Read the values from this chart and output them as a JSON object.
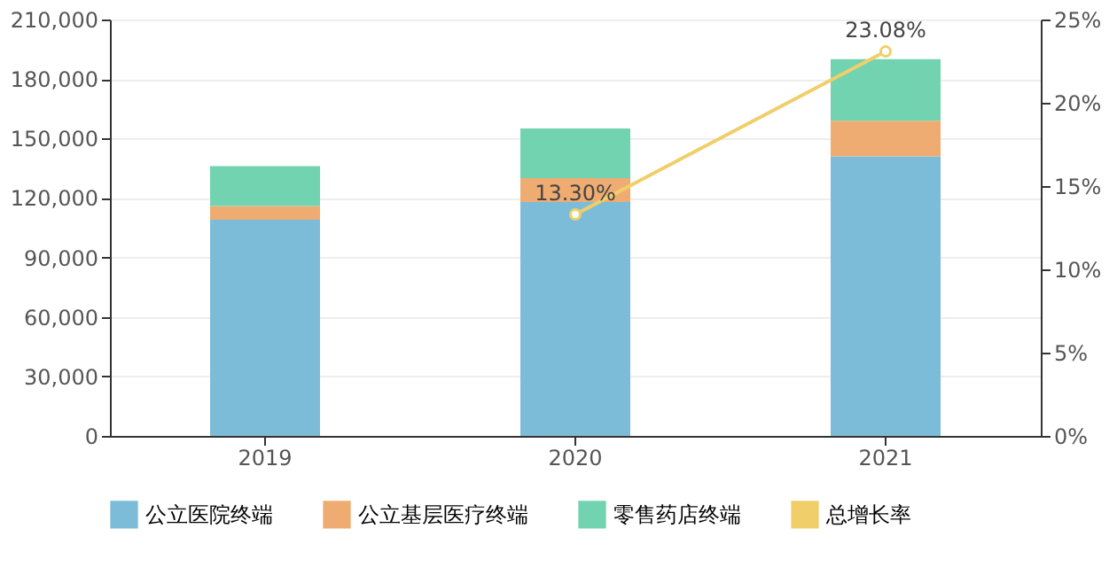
{
  "chart_data": {
    "type": "bar",
    "stacked": true,
    "categories": [
      "2019",
      "2020",
      "2021"
    ],
    "series": [
      {
        "name": "公立医院终端",
        "color": "#7dbcd9",
        "values": [
          109000,
          118000,
          141000
        ]
      },
      {
        "name": "公立基层医疗终端",
        "color": "#eeac72",
        "values": [
          7000,
          12000,
          18000
        ]
      },
      {
        "name": "零售药店终端",
        "color": "#72d3b0",
        "values": [
          20000,
          25000,
          31000
        ]
      },
      {
        "name": "总增长率",
        "color": "#f0cf6a",
        "type": "line",
        "axis": "y2",
        "marker": "circle",
        "values": [
          null,
          13.3,
          23.08
        ],
        "value_labels": [
          null,
          "13.30%",
          "23.08%"
        ]
      }
    ],
    "ylim": [
      0,
      210000
    ],
    "yticks": [
      0,
      {
        "value": 30000,
        "label": "30,000"
      },
      {
        "value": 60000,
        "label": "60,000"
      },
      {
        "value": 90000,
        "label": "90,000"
      },
      {
        "value": 120000,
        "label": "120,000"
      },
      {
        "value": 150000,
        "label": "150,000"
      },
      {
        "value": 180000,
        "label": "180,000"
      },
      {
        "value": 210000,
        "label": "210,000"
      }
    ],
    "y2lim": [
      0,
      25
    ],
    "y2ticks": [
      {
        "value": 0,
        "label": "0%"
      },
      {
        "value": 5,
        "label": "5%"
      },
      {
        "value": 10,
        "label": "10%"
      },
      {
        "value": 15,
        "label": "15%"
      },
      {
        "value": 20,
        "label": "20%"
      },
      {
        "value": 25,
        "label": "25%"
      }
    ],
    "grid": "y",
    "legend": "bottom"
  }
}
